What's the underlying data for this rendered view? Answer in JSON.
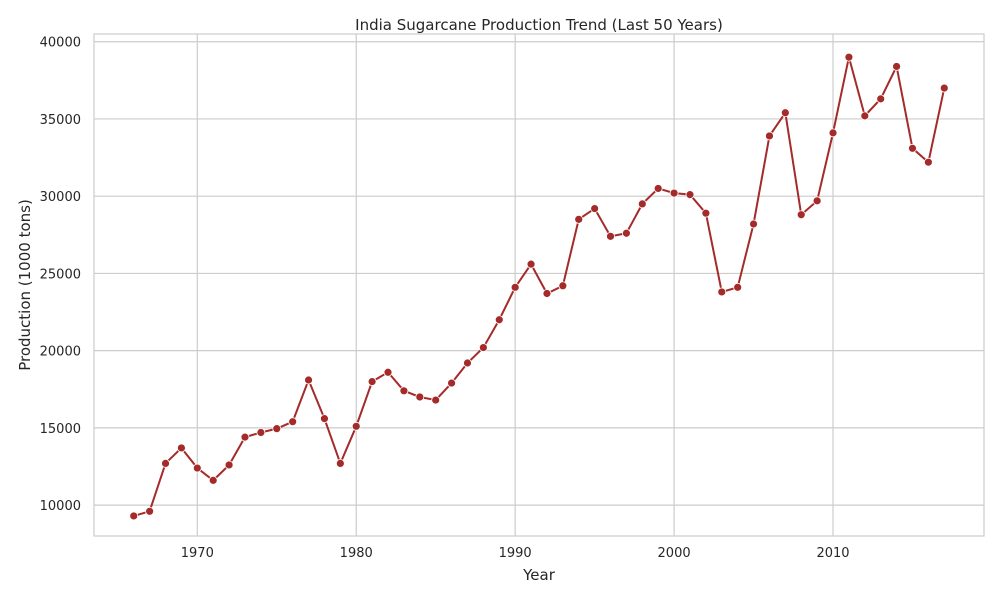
{
  "chart_data": {
    "type": "line",
    "title": "India Sugarcane Production Trend (Last 50 Years)",
    "xlabel": "Year",
    "ylabel": "Production (1000 tons)",
    "xlim": [
      1963.5,
      2019.5
    ],
    "ylim": [
      8000,
      40500
    ],
    "xticks": [
      1970,
      1980,
      1990,
      2000,
      2010
    ],
    "yticks": [
      10000,
      15000,
      20000,
      25000,
      30000,
      35000,
      40000
    ],
    "grid": true,
    "line_color": "#a52a2a",
    "grid_color": "#cccccc",
    "axes_color": "#cccccc",
    "series": [
      {
        "x": [
          1966,
          1967,
          1968,
          1969,
          1970,
          1971,
          1972,
          1973,
          1974,
          1975,
          1976,
          1977,
          1978,
          1979,
          1980,
          1981,
          1982,
          1983,
          1984,
          1985,
          1986,
          1987,
          1988,
          1989,
          1990,
          1991,
          1992,
          1993,
          1994,
          1995,
          1996,
          1997,
          1998,
          1999,
          2000,
          2001,
          2002,
          2003,
          2004,
          2005,
          2006,
          2007,
          2008,
          2009,
          2010,
          2011,
          2012,
          2013,
          2014,
          2015,
          2016,
          2017
        ],
        "values": [
          9300,
          9600,
          12700,
          13700,
          12400,
          11600,
          12600,
          14400,
          14700,
          14950,
          15400,
          18100,
          15600,
          12700,
          15100,
          18000,
          18600,
          17400,
          17000,
          16800,
          17900,
          19200,
          20200,
          22000,
          24100,
          25600,
          23700,
          24200,
          28500,
          29200,
          27400,
          27600,
          29500,
          30500,
          30200,
          30100,
          28900,
          23800,
          24100,
          28200,
          33900,
          35400,
          28800,
          29700,
          34100,
          39000,
          35200,
          36300,
          38400,
          33100,
          32200,
          37000
        ]
      }
    ]
  }
}
